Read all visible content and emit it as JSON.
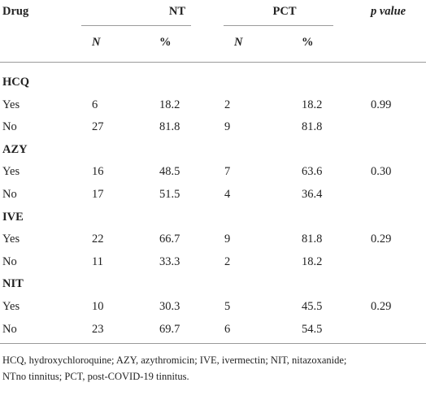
{
  "table": {
    "header": [
      "Drug",
      "NT",
      "PCT",
      "p value"
    ],
    "subheader": [
      "N",
      "%",
      "N",
      "%"
    ],
    "groups": [
      {
        "label": "HCQ",
        "rows": [
          [
            "Yes",
            "6",
            "18.2",
            "2",
            "18.2",
            "0.99"
          ],
          [
            "No",
            "27",
            "81.8",
            "9",
            "81.8"
          ]
        ]
      },
      {
        "label": "AZY",
        "rows": [
          [
            "Yes",
            "16",
            "48.5",
            "7",
            "63.6",
            "0.30"
          ],
          [
            "No",
            "17",
            "51.5",
            "4",
            "36.4"
          ]
        ]
      },
      {
        "label": "IVE",
        "rows": [
          [
            "Yes",
            "22",
            "66.7",
            "9",
            "81.8",
            "0.29"
          ],
          [
            "No",
            "11",
            "33.3",
            "2",
            "18.2"
          ]
        ]
      },
      {
        "label": "NIT",
        "rows": [
          [
            "Yes",
            "10",
            "30.3",
            "5",
            "45.5",
            "0.29"
          ],
          [
            "No",
            "23",
            "69.7",
            "6",
            "54.5"
          ]
        ]
      }
    ],
    "footnote": [
      "HCQ, hydroxychloroquine; AZY, azythromicin; IVE, ivermectin; NIT, nitazoxanide;",
      "NTno tinnitus; PCT, post-COVID-19 tinnitus."
    ]
  }
}
